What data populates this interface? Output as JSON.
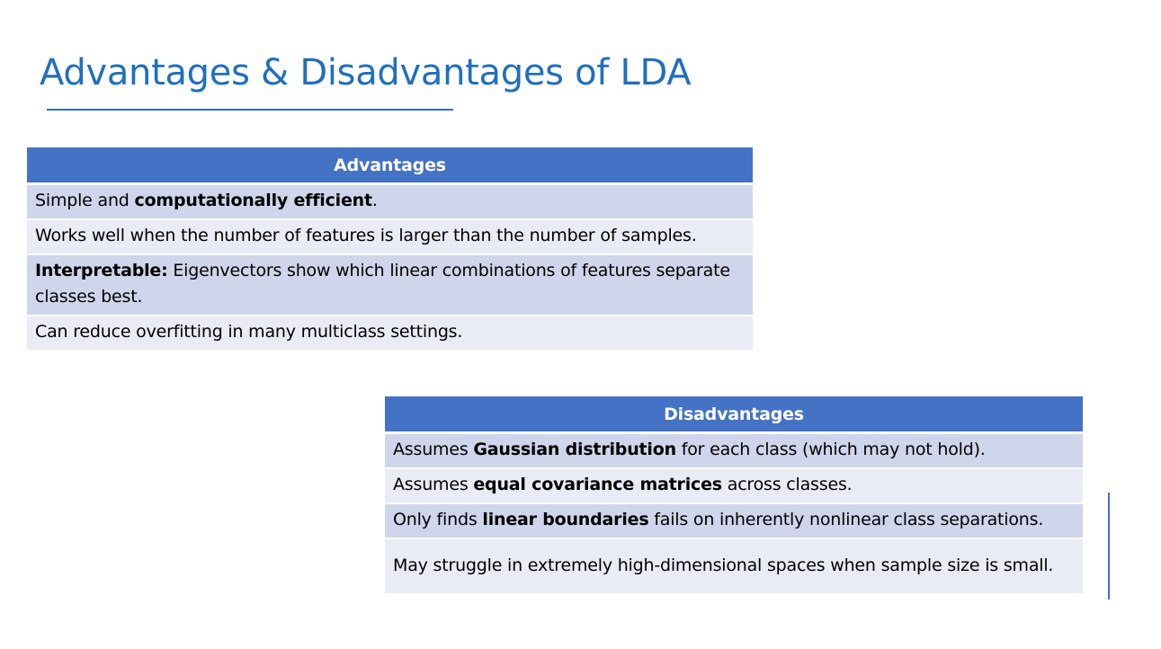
{
  "slide": {
    "title": "Advantages & Disadvantages of LDA"
  },
  "advantages": {
    "header": "Advantages",
    "rows": [
      {
        "pre": "Simple and ",
        "bold": "computationally efficient",
        "post": "."
      },
      {
        "pre": "Works well when the number of features is larger than the number of samples.",
        "bold": "",
        "post": ""
      },
      {
        "pre": "",
        "bold": "Interpretable:",
        "post": " Eigenvectors show which linear combinations of features separate classes best."
      },
      {
        "pre": "Can reduce overfitting in many multiclass settings.",
        "bold": "",
        "post": ""
      }
    ]
  },
  "disadvantages": {
    "header": "Disadvantages",
    "rows": [
      {
        "pre": "Assumes ",
        "bold": "Gaussian distribution",
        "post": " for each class (which may not hold)."
      },
      {
        "pre": "Assumes ",
        "bold": "equal covariance matrices",
        "post": " across classes."
      },
      {
        "pre": "Only finds ",
        "bold": "linear boundaries",
        "post": " fails on inherently nonlinear class separations."
      },
      {
        "pre": "May struggle in extremely high-dimensional spaces when sample size is small.",
        "bold": "",
        "post": ""
      }
    ]
  },
  "colors": {
    "title": "#1f6fbf",
    "header_fill": "#4472c4",
    "row_odd": "#cfd5ea",
    "row_even": "#e9ebf5"
  }
}
